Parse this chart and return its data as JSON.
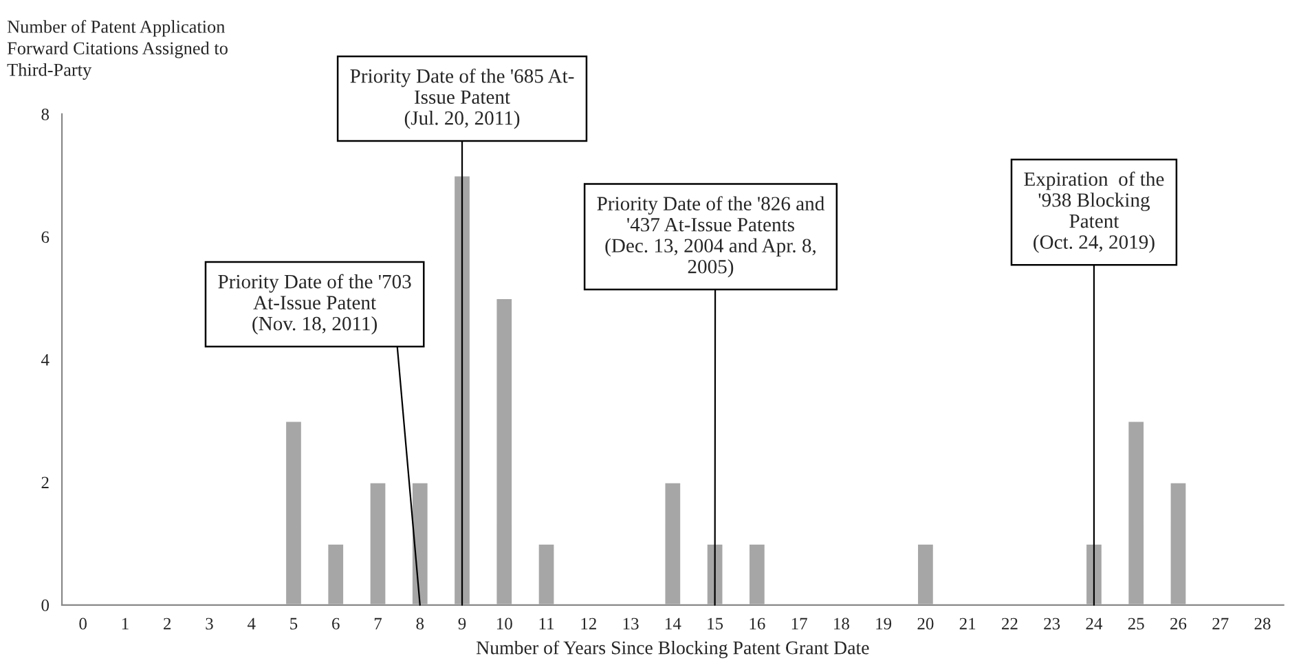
{
  "chart_data": {
    "type": "bar",
    "ylabel": "Number of Patent Application\nForward Citations Assigned to\nThird-Party",
    "xlabel": "Number of Years Since Blocking Patent Grant Date",
    "categories": [
      "0",
      "1",
      "2",
      "3",
      "4",
      "5",
      "6",
      "7",
      "8",
      "9",
      "10",
      "11",
      "12",
      "13",
      "14",
      "15",
      "16",
      "17",
      "18",
      "19",
      "20",
      "21",
      "22",
      "23",
      "24",
      "25",
      "26",
      "27",
      "28"
    ],
    "values": [
      0,
      0,
      0,
      0,
      0,
      3,
      1,
      2,
      2,
      7,
      5,
      1,
      0,
      0,
      2,
      1,
      1,
      0,
      0,
      0,
      1,
      0,
      0,
      0,
      1,
      3,
      2,
      0,
      0
    ],
    "color": "#a6a6a6",
    "ylim": [
      0,
      8
    ],
    "yticks": [
      0,
      2,
      4,
      6,
      8
    ],
    "grid": false,
    "annotations": [
      {
        "text": "Priority Date of the '703\nAt-Issue Patent\n(Nov. 18, 2011)",
        "x": "8",
        "y": 0
      },
      {
        "text": "Priority Date of the '685 At-\nIssue Patent\n(Jul. 20, 2011)",
        "x": "9",
        "y": 0
      },
      {
        "text": "Priority Date of the '826 and\n'437 At-Issue Patents\n(Dec. 13, 2004 and Apr. 8,\n2005)",
        "x": "15",
        "y": 0
      },
      {
        "text": "Expiration  of the\n'938 Blocking\nPatent\n(Oct. 24, 2019)",
        "x": "24",
        "y": 0
      }
    ]
  }
}
